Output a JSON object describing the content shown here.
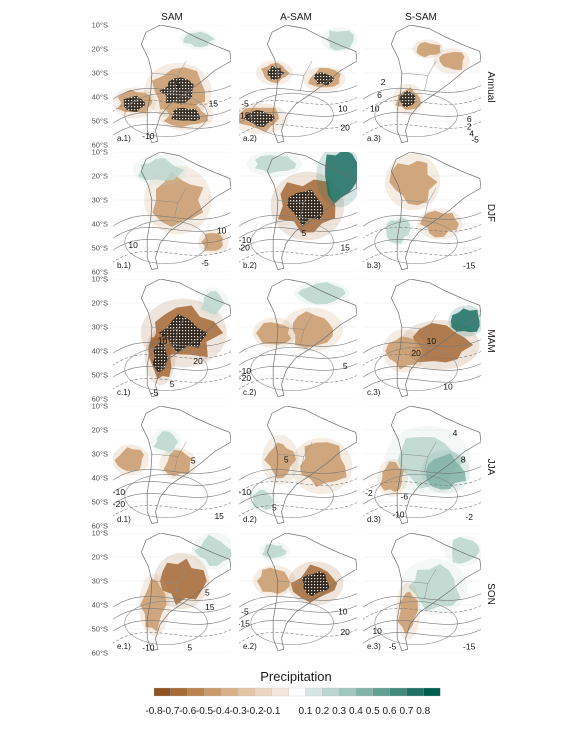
{
  "chart_data": {
    "type": "heatmap",
    "columns": [
      "SAM",
      "A-SAM",
      "S-SAM"
    ],
    "rows": [
      "Annual",
      "DJF",
      "MAM",
      "JJA",
      "SON"
    ],
    "lat_ticks": [
      "10°S",
      "20°S",
      "30°S",
      "40°S",
      "50°S",
      "60°S"
    ],
    "legend": {
      "title": "Precipitation",
      "labels": [
        "-0.8",
        "-0.7",
        "-0.6",
        "-0.5",
        "-0.4",
        "-0.3",
        "-0.2",
        "-0.1",
        "0.1",
        "0.2",
        "0.3",
        "0.4",
        "0.5",
        "0.6",
        "0.7",
        "0.8"
      ],
      "colors": [
        "#8c5221",
        "#a56a37",
        "#b9824f",
        "#c99a6c",
        "#d8b08a",
        "#e3c4a6",
        "#ecd6c3",
        "#f3e6db",
        "#ffffff",
        "#d7e6e2",
        "#bcd6cf",
        "#a0c6bd",
        "#82b3a8",
        "#629f92",
        "#428a7c",
        "#1e7164",
        "#005e50"
      ]
    },
    "panels": [
      {
        "tag": "a.1)",
        "row": 0,
        "col": 0,
        "contours": [
          "5",
          "15",
          "-10"
        ]
      },
      {
        "tag": "a.2)",
        "row": 0,
        "col": 1,
        "contours": [
          "-5",
          "15",
          "10",
          "20"
        ]
      },
      {
        "tag": "a.3)",
        "row": 0,
        "col": 2,
        "contours": [
          "2",
          "6",
          "10",
          "6",
          "2",
          "4",
          "-5"
        ]
      },
      {
        "tag": "b.1)",
        "row": 1,
        "col": 0,
        "contours": [
          "10",
          "10",
          "-5"
        ]
      },
      {
        "tag": "b.2)",
        "row": 1,
        "col": 1,
        "contours": [
          "5",
          "-10",
          "-20",
          "15"
        ]
      },
      {
        "tag": "b.3)",
        "row": 1,
        "col": 2,
        "contours": [
          "-15"
        ]
      },
      {
        "tag": "c.1)",
        "row": 2,
        "col": 0,
        "contours": [
          "-5",
          "10",
          "20",
          "5",
          "-5"
        ]
      },
      {
        "tag": "c.2)",
        "row": 2,
        "col": 1,
        "contours": [
          "-10",
          "-20",
          "5"
        ]
      },
      {
        "tag": "c.3)",
        "row": 2,
        "col": 2,
        "contours": [
          "10",
          "20",
          "10"
        ]
      },
      {
        "tag": "d.1)",
        "row": 3,
        "col": 0,
        "contours": [
          "5",
          "-10",
          "-20",
          "15"
        ]
      },
      {
        "tag": "d.2)",
        "row": 3,
        "col": 1,
        "contours": [
          "5",
          "-10",
          "5"
        ]
      },
      {
        "tag": "d.3)",
        "row": 3,
        "col": 2,
        "contours": [
          "4",
          "8",
          "-2",
          "-6",
          "-10",
          "-2"
        ]
      },
      {
        "tag": "e.1)",
        "row": 4,
        "col": 0,
        "contours": [
          "5",
          "15",
          "-10",
          "5"
        ]
      },
      {
        "tag": "e.2)",
        "row": 4,
        "col": 1,
        "contours": [
          "-5",
          "-15",
          "10",
          "20"
        ]
      },
      {
        "tag": "e.3)",
        "row": 4,
        "col": 2,
        "contours": [
          "10",
          "-5",
          "-15"
        ]
      }
    ]
  }
}
